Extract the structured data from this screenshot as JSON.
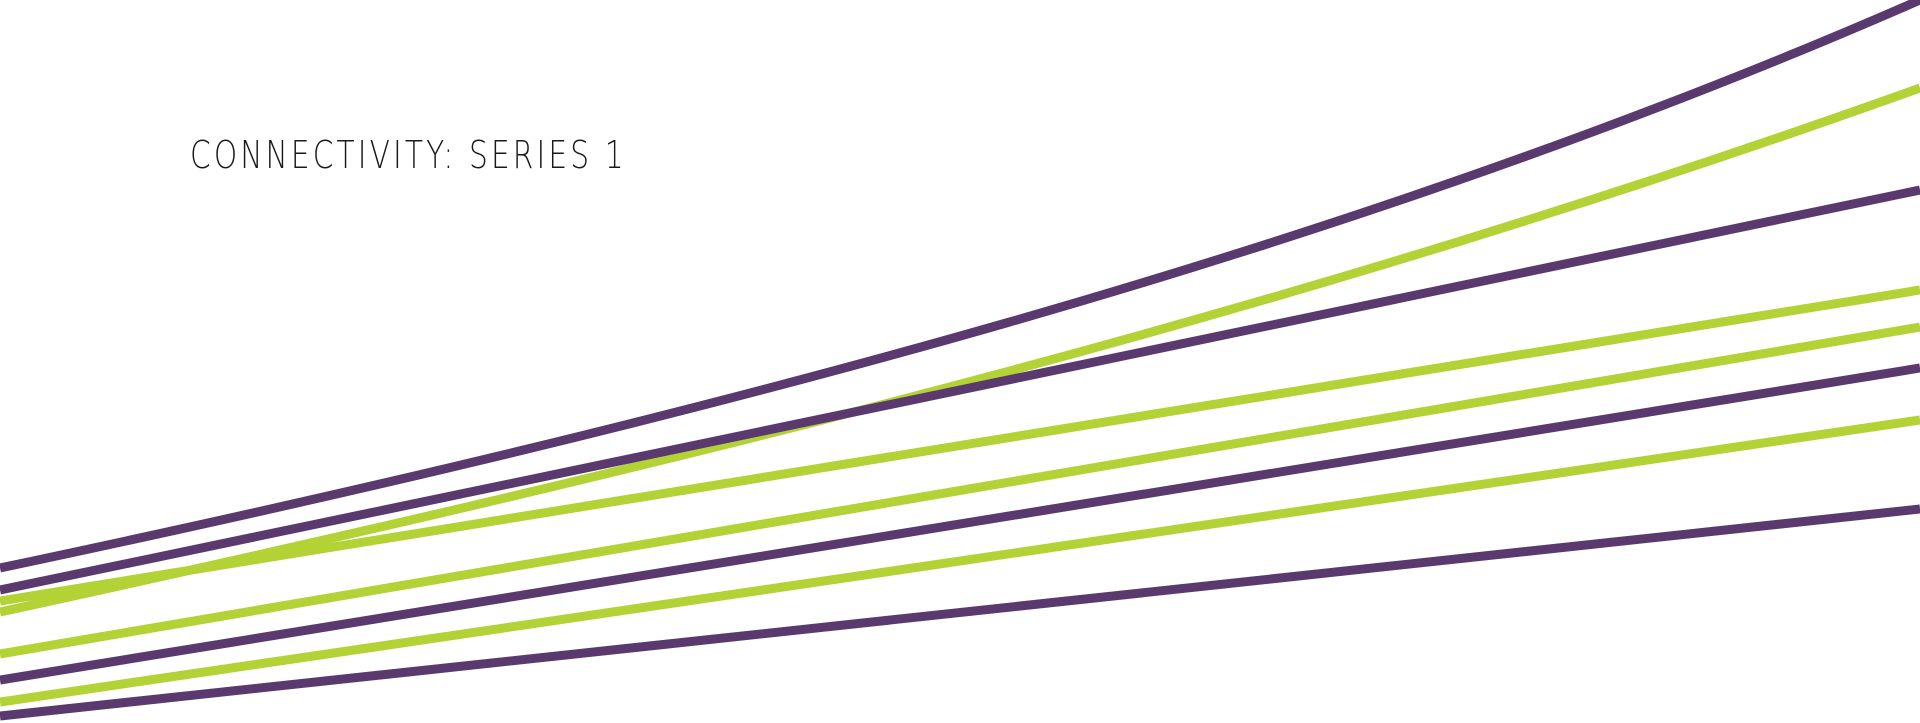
{
  "title": "CONNECTIVITY: SERIES 1",
  "colors": {
    "background": "#ffffff",
    "title_text": "#1a1a1a",
    "purple": "#5a3a6e",
    "green": "#b2d235"
  }
}
